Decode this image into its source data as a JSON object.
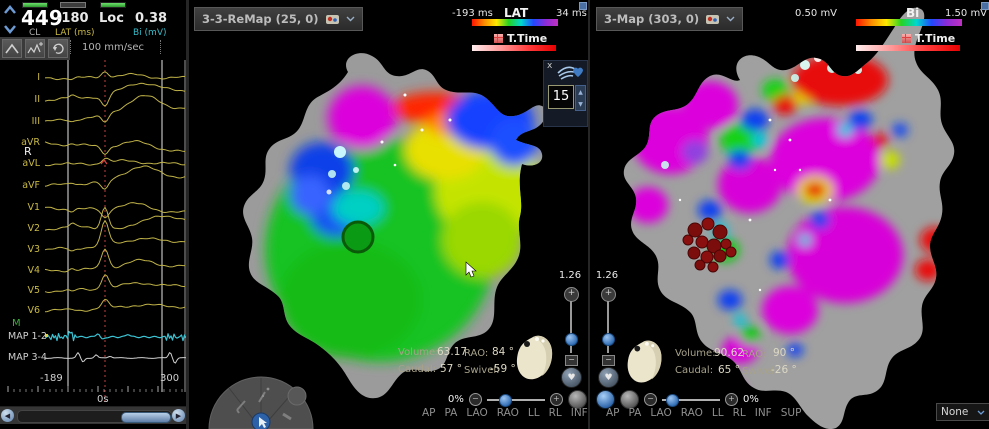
{
  "ecg": {
    "header": {
      "cl_value": "449",
      "cl_label": "CL",
      "lat_value": "-180",
      "lat_label": "LAT (ms)",
      "loc_value": "Loc",
      "bi_value": "0.38",
      "bi_label": "Bi (mV)"
    },
    "sweep_speed": "100 mm/sec",
    "leads": [
      "I",
      "II",
      "III",
      "aVR",
      "aVL",
      "aVF",
      "V1",
      "V2",
      "V3",
      "V4",
      "V5",
      "V6"
    ],
    "map_leads": [
      "MAP 1-2",
      "MAP 3-4"
    ],
    "r_marker": "R",
    "m_marker": "M",
    "axis": {
      "left": "-189",
      "right": "300",
      "zero": "0s"
    }
  },
  "map_left": {
    "title": "3-3-ReMap (25, 0)",
    "scale": {
      "min": "-193 ms",
      "label": "LAT",
      "max": "34 ms"
    },
    "ttime_label": "T.Time",
    "close_label": "x",
    "points_value": "15",
    "zoom_value": "1.26",
    "info": {
      "volume_label": "Volume:",
      "volume_value": "63.17",
      "rao_label": "RAO:",
      "rao_value": "84 °",
      "caudal_label": "Caudal:",
      "caudal_value": "57 °",
      "swivel_label": "Swivel:",
      "swivel_value": "-59 °"
    },
    "opacity_value": "0%",
    "orientations": [
      "AP",
      "PA",
      "LAO",
      "RAO",
      "LL",
      "RL",
      "INF",
      "SUP"
    ]
  },
  "map_right": {
    "title": "3-Map (303, 0)",
    "scale": {
      "min": "0.50 mV",
      "label": "Bi",
      "max": "1.50 mV"
    },
    "ttime_label": "T.Time",
    "zoom_value": "1.26",
    "info": {
      "volume_label": "Volume:",
      "volume_value": "90.62",
      "rao_label": "RAO:",
      "rao_value": "90 °",
      "caudal_label": "Caudal:",
      "caudal_value": "65 °",
      "swivel_label": "Swivel:",
      "swivel_value": "-26 °"
    },
    "opacity_value": "0%",
    "orientations": [
      "AP",
      "PA",
      "LAO",
      "RAO",
      "LL",
      "RL",
      "INF",
      "SUP"
    ],
    "dropdown_value": "None"
  }
}
